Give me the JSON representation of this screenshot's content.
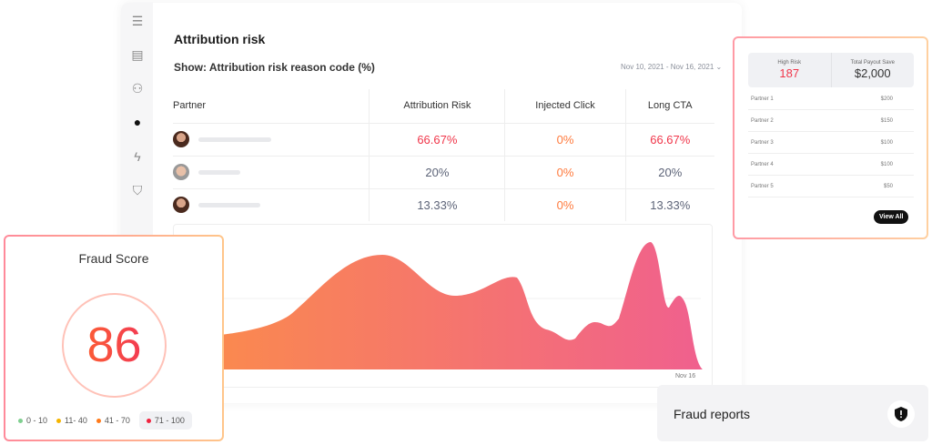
{
  "main": {
    "title": "Attribution risk",
    "show_label": "Show: Attribution risk reason code (%)",
    "date_range": "Nov 10, 2021 - Nov 16, 2021",
    "columns": [
      "Partner",
      "Attribution Risk",
      "Injected Click",
      "Long CTA"
    ],
    "rows": [
      {
        "attribution_risk": "66.67%",
        "injected_click": "0%",
        "long_cta": "66.67%"
      },
      {
        "attribution_risk": "20%",
        "injected_click": "0%",
        "long_cta": "20%"
      },
      {
        "attribution_risk": "13.33%",
        "injected_click": "0%",
        "long_cta": "13.33%"
      }
    ],
    "chart": {
      "x_label": "Nov 16"
    }
  },
  "fraud_score": {
    "title": "Fraud Score",
    "score": "86",
    "legend": [
      "0 - 10",
      "11- 40",
      "41 - 70",
      "71 - 100"
    ],
    "legend_colors": [
      "#7fcf8f",
      "#f5b400",
      "#ff7a1a",
      "#f0233f"
    ]
  },
  "risk_card": {
    "high_risk_label": "High Risk",
    "high_risk_value": "187",
    "payout_label": "Total Payout Save",
    "payout_value": "$2,000",
    "partners": [
      {
        "name": "Partner 1",
        "amount": "$200"
      },
      {
        "name": "Partner 2",
        "amount": "$150"
      },
      {
        "name": "Partner 3",
        "amount": "$100"
      },
      {
        "name": "Partner 4",
        "amount": "$100"
      },
      {
        "name": "Partner 5",
        "amount": "$50"
      }
    ],
    "view_all": "View All"
  },
  "reports": {
    "title": "Fraud reports"
  }
}
